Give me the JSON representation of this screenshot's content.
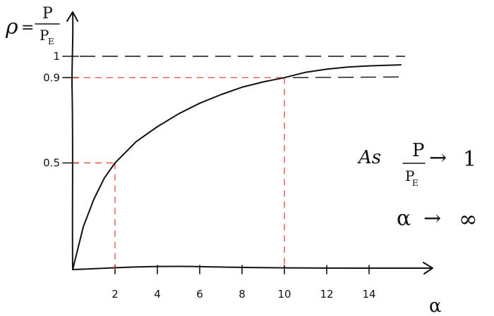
{
  "chart_data": {
    "type": "line",
    "xlabel": "α",
    "ylabel_rho": "ρ",
    "ylabel_eq": "=",
    "ylabel_num": "P",
    "ylabel_den": "P",
    "ylabel_den_sub": "E",
    "x_ticks": [
      "2",
      "4",
      "6",
      "8",
      "10",
      "12",
      "14"
    ],
    "y_ticks": [
      "0.5",
      "0.9",
      "1"
    ],
    "xlim": [
      0,
      16
    ],
    "ylim": [
      0,
      1.05
    ],
    "series": [
      {
        "x": [
          0,
          0.5,
          1,
          1.5,
          2,
          3,
          4,
          5,
          6,
          7,
          8,
          9,
          10,
          11,
          12,
          13,
          14,
          15.5
        ],
        "y": [
          0,
          0.2,
          0.33,
          0.43,
          0.5,
          0.6,
          0.67,
          0.73,
          0.78,
          0.82,
          0.855,
          0.88,
          0.9,
          0.925,
          0.94,
          0.95,
          0.955,
          0.96
        ]
      }
    ],
    "reference_lines": {
      "asymptote": 1,
      "level_09": 0.9
    },
    "markers": [
      {
        "x": 2,
        "y": 0.5
      },
      {
        "x": 10,
        "y": 0.9
      }
    ]
  },
  "note": {
    "as": "As",
    "frac_num": "P",
    "frac_den": "P",
    "frac_den_sub": "E",
    "arrow": "→",
    "limit": "1",
    "alpha": "α",
    "infinity": "∞"
  }
}
